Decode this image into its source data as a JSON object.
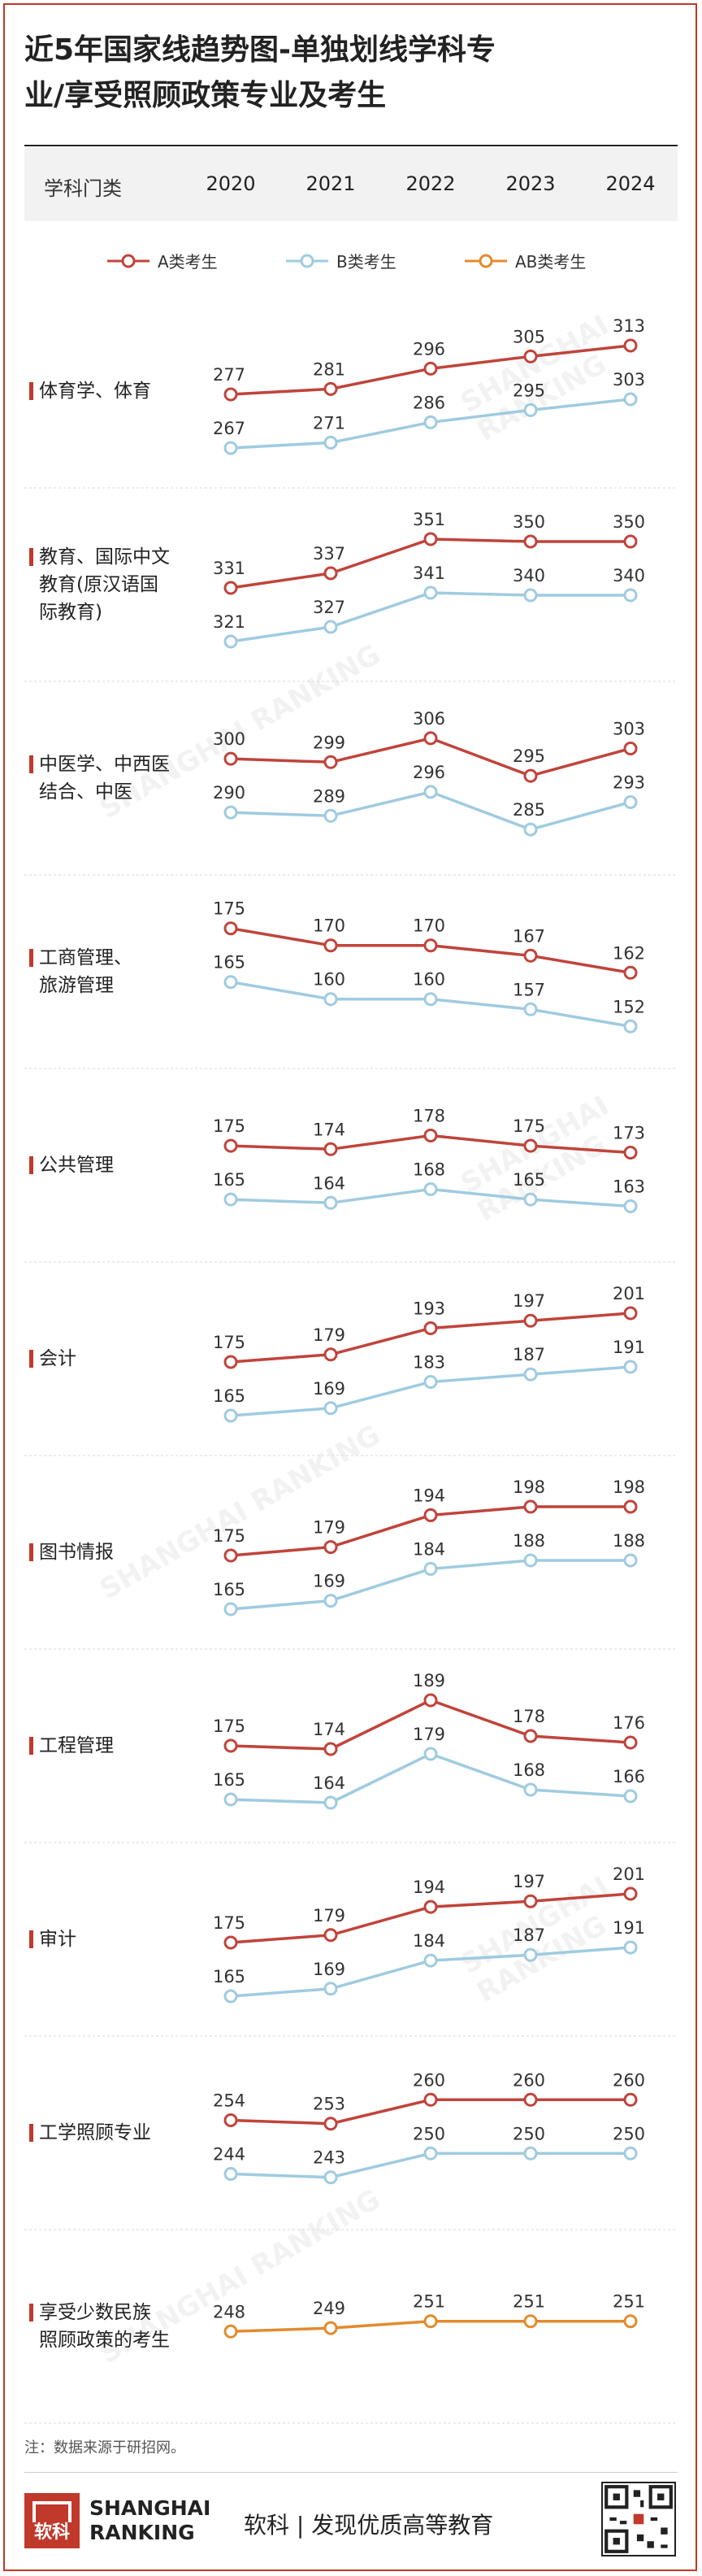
{
  "title": {
    "line1": "近5年国家线趋势图-单独划线学科专",
    "line2": "业/享受照顾政策专业及考生"
  },
  "header": {
    "category_label": "学科门类",
    "years": [
      "2020",
      "2021",
      "2022",
      "2023",
      "2024"
    ]
  },
  "legend": [
    {
      "name": "A类考生",
      "color": "#c0443b"
    },
    {
      "name": "B类考生",
      "color": "#9fcbe0"
    },
    {
      "name": "AB类考生",
      "color": "#e38b2c"
    }
  ],
  "chart_data": {
    "type": "line",
    "x": [
      "2020",
      "2021",
      "2022",
      "2023",
      "2024"
    ],
    "groups": [
      {
        "label": "体育学、体育",
        "series": [
          {
            "name": "A类考生",
            "values": [
              277,
              281,
              296,
              305,
              313
            ]
          },
          {
            "name": "B类考生",
            "values": [
              267,
              271,
              286,
              295,
              303
            ]
          }
        ]
      },
      {
        "label": "教育、国际中文教育(原汉语国际教育)",
        "series": [
          {
            "name": "A类考生",
            "values": [
              331,
              337,
              351,
              350,
              350
            ]
          },
          {
            "name": "B类考生",
            "values": [
              321,
              327,
              341,
              340,
              340
            ]
          }
        ]
      },
      {
        "label": "中医学、中西医结合、中医",
        "series": [
          {
            "name": "A类考生",
            "values": [
              300,
              299,
              306,
              295,
              303
            ]
          },
          {
            "name": "B类考生",
            "values": [
              290,
              289,
              296,
              285,
              293
            ]
          }
        ]
      },
      {
        "label": "工商管理、旅游管理",
        "series": [
          {
            "name": "A类考生",
            "values": [
              175,
              170,
              170,
              167,
              162
            ]
          },
          {
            "name": "B类考生",
            "values": [
              165,
              160,
              160,
              157,
              152
            ]
          }
        ]
      },
      {
        "label": "公共管理",
        "series": [
          {
            "name": "A类考生",
            "values": [
              175,
              174,
              178,
              175,
              173
            ]
          },
          {
            "name": "B类考生",
            "values": [
              165,
              164,
              168,
              165,
              163
            ]
          }
        ]
      },
      {
        "label": "会计",
        "series": [
          {
            "name": "A类考生",
            "values": [
              175,
              179,
              193,
              197,
              201
            ]
          },
          {
            "name": "B类考生",
            "values": [
              165,
              169,
              183,
              187,
              191
            ]
          }
        ]
      },
      {
        "label": "图书情报",
        "series": [
          {
            "name": "A类考生",
            "values": [
              175,
              179,
              194,
              198,
              198
            ]
          },
          {
            "name": "B类考生",
            "values": [
              165,
              169,
              184,
              188,
              188
            ]
          }
        ]
      },
      {
        "label": "工程管理",
        "series": [
          {
            "name": "A类考生",
            "values": [
              175,
              174,
              189,
              178,
              176
            ]
          },
          {
            "name": "B类考生",
            "values": [
              165,
              164,
              179,
              168,
              166
            ]
          }
        ]
      },
      {
        "label": "审计",
        "series": [
          {
            "name": "A类考生",
            "values": [
              175,
              179,
              194,
              197,
              201
            ]
          },
          {
            "name": "B类考生",
            "values": [
              165,
              169,
              184,
              187,
              191
            ]
          }
        ]
      },
      {
        "label": "工学照顾专业",
        "series": [
          {
            "name": "A类考生",
            "values": [
              254,
              253,
              260,
              260,
              260
            ]
          },
          {
            "name": "B类考生",
            "values": [
              244,
              243,
              250,
              250,
              250
            ]
          }
        ]
      },
      {
        "label": "享受少数民族照顾政策的考生",
        "series": [
          {
            "name": "AB类考生",
            "values": [
              248,
              249,
              251,
              251,
              251
            ]
          }
        ]
      }
    ]
  },
  "footnote": "注：数据来源于研招网。",
  "footer": {
    "logo_short": "软科",
    "logo_en1": "SHANGHAI",
    "logo_en2": "RANKING",
    "slogan": "软科 | 发现优质高等教育"
  },
  "watermark": "SHANGHAI RANKING"
}
